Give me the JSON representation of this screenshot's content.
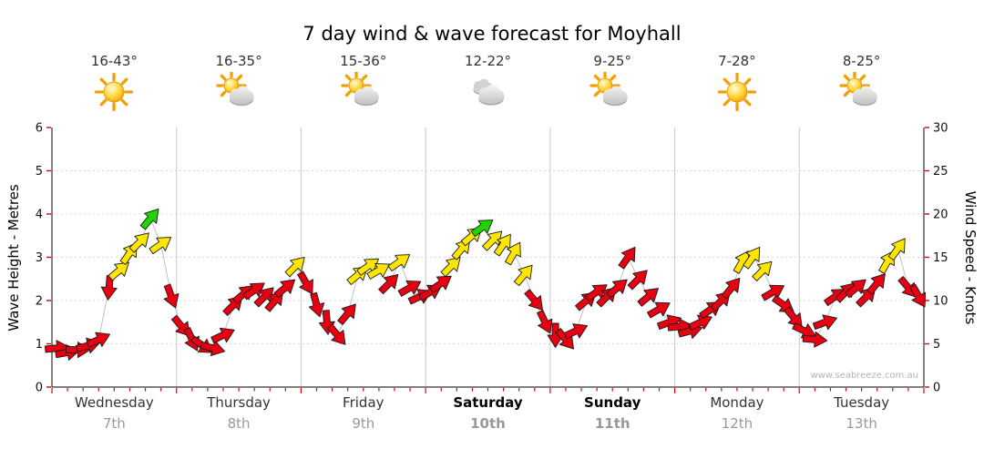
{
  "title": "7 day wind & wave forecast for Moyhall",
  "watermark": "www.seabreeze.com.au",
  "axes": {
    "left_label": "Wave Height - Metres",
    "right_label": "Wind Speed - Knots",
    "left_ticks": [
      0,
      1,
      2,
      3,
      4,
      5,
      6
    ],
    "right_ticks": [
      0,
      5,
      10,
      15,
      20,
      25,
      30
    ]
  },
  "days": [
    {
      "name": "Wednesday",
      "date": "7th",
      "temp": "16-43°",
      "icon": "sunny",
      "bold": false
    },
    {
      "name": "Thursday",
      "date": "8th",
      "temp": "16-35°",
      "icon": "partly-cloudy",
      "bold": false
    },
    {
      "name": "Friday",
      "date": "9th",
      "temp": "15-36°",
      "icon": "partly-cloudy",
      "bold": false
    },
    {
      "name": "Saturday",
      "date": "10th",
      "temp": "12-22°",
      "icon": "cloudy",
      "bold": true
    },
    {
      "name": "Sunday",
      "date": "11th",
      "temp": "9-25°",
      "icon": "partly-cloudy",
      "bold": true
    },
    {
      "name": "Monday",
      "date": "12th",
      "temp": "7-28°",
      "icon": "sunny",
      "bold": false
    },
    {
      "name": "Tuesday",
      "date": "13th",
      "temp": "8-25°",
      "icon": "partly-cloudy",
      "bold": false
    }
  ],
  "chart_data": {
    "type": "line",
    "marker": "wind-direction-arrow",
    "title": "7 day wind & wave forecast for Moyhall",
    "categories": [
      "Wednesday 7th",
      "Thursday 8th",
      "Friday 9th",
      "Saturday 10th",
      "Sunday 11th",
      "Monday 12th",
      "Tuesday 13th"
    ],
    "points_per_day": 12,
    "left_axis": {
      "label": "Wave Height - Metres",
      "range": [
        0,
        6
      ],
      "unit": "m"
    },
    "right_axis": {
      "label": "Wind Speed - Knots",
      "range": [
        0,
        30
      ],
      "unit": "kn"
    },
    "grid": true,
    "legend_position": "none",
    "color_key": {
      "r": "#e60012",
      "y": "#ffe600",
      "g": "#1fd400"
    },
    "series": [
      {
        "name": "Wind speed",
        "unit": "knots",
        "values": [
          4.5,
          4,
          4.3,
          4.8,
          5.5,
          11.5,
          13.5,
          15.5,
          16.8,
          19.5,
          16.5,
          10.5,
          7,
          5.5,
          4.8,
          4.5,
          6,
          9.5,
          10.8,
          11.2,
          10.5,
          10,
          11.5,
          14,
          12,
          9.5,
          7.5,
          6,
          8.5,
          13,
          14,
          13.5,
          12,
          14.5,
          11.5,
          10.5,
          11,
          12,
          14,
          16,
          17.5,
          18.5,
          17,
          16.5,
          15.5,
          13,
          10,
          7.5,
          6,
          5.5,
          6.5,
          10,
          11,
          10.5,
          11.5,
          15,
          12.5,
          10.5,
          9,
          7.5,
          7,
          6.5,
          7.5,
          9,
          10,
          11.5,
          14.5,
          15,
          13.5,
          11,
          9.5,
          8,
          6.5,
          5.5,
          7.5,
          10.5,
          11,
          11.5,
          10.5,
          12,
          14.5,
          16,
          11.5,
          10.5
        ],
        "arrow_colors": [
          "r",
          "r",
          "r",
          "r",
          "r",
          "r",
          "y",
          "y",
          "y",
          "g",
          "y",
          "r",
          "r",
          "r",
          "r",
          "r",
          "r",
          "r",
          "r",
          "r",
          "r",
          "r",
          "r",
          "y",
          "r",
          "r",
          "r",
          "r",
          "r",
          "y",
          "y",
          "y",
          "r",
          "y",
          "r",
          "r",
          "r",
          "r",
          "y",
          "y",
          "y",
          "g",
          "y",
          "y",
          "y",
          "y",
          "r",
          "r",
          "r",
          "r",
          "r",
          "r",
          "r",
          "r",
          "r",
          "r",
          "r",
          "r",
          "r",
          "r",
          "r",
          "r",
          "r",
          "r",
          "r",
          "r",
          "y",
          "y",
          "y",
          "r",
          "r",
          "r",
          "r",
          "r",
          "r",
          "r",
          "r",
          "r",
          "r",
          "r",
          "y",
          "y",
          "r",
          "r"
        ],
        "arrow_dirs_deg": [
          -5,
          -10,
          0,
          -15,
          -25,
          95,
          -40,
          -55,
          -45,
          -50,
          -35,
          70,
          50,
          65,
          35,
          15,
          -25,
          -45,
          -40,
          -35,
          -45,
          -50,
          -40,
          -45,
          60,
          75,
          85,
          50,
          -50,
          -40,
          -35,
          -30,
          -45,
          -35,
          -30,
          -25,
          -30,
          -35,
          -45,
          -50,
          -40,
          -35,
          -45,
          -55,
          -60,
          -50,
          50,
          65,
          90,
          50,
          -25,
          -40,
          -35,
          -45,
          -40,
          -55,
          -45,
          -40,
          -30,
          -20,
          -5,
          -15,
          -25,
          -35,
          -45,
          -50,
          -60,
          -55,
          -45,
          -30,
          35,
          50,
          25,
          5,
          -20,
          -35,
          -45,
          -40,
          -45,
          -50,
          -60,
          -55,
          50,
          60
        ]
      }
    ]
  }
}
